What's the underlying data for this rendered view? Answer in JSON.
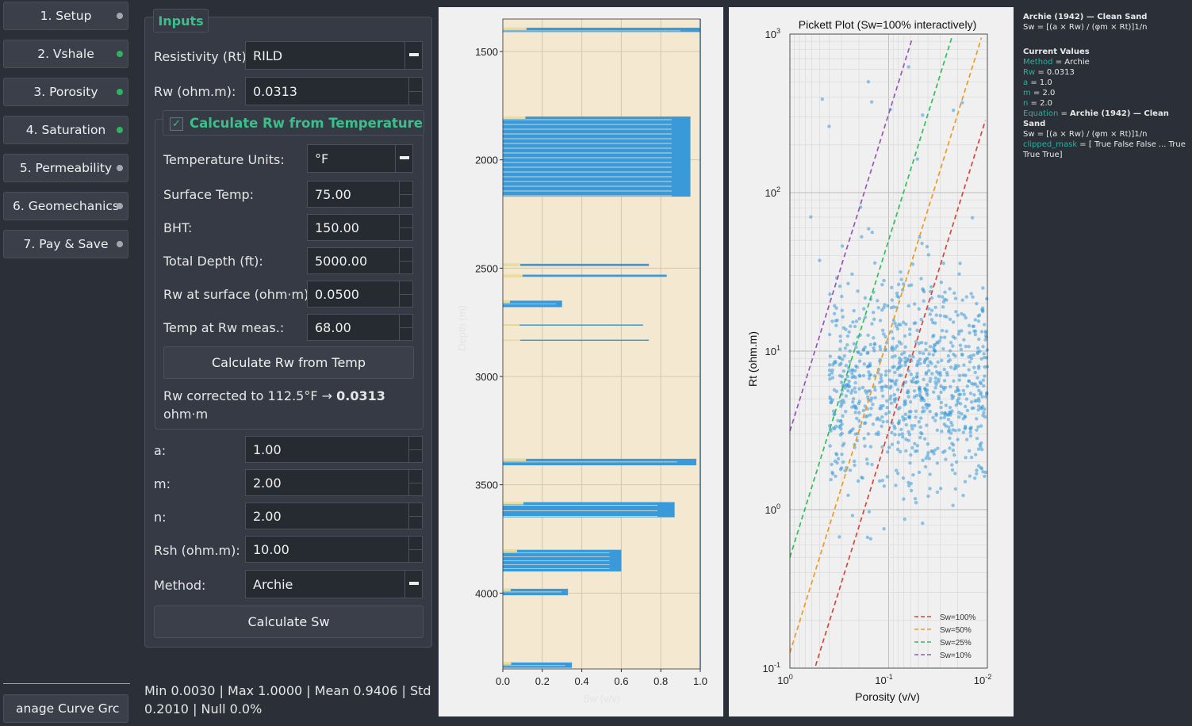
{
  "nav": {
    "items": [
      {
        "label": "1. Setup",
        "status": "grey"
      },
      {
        "label": "2. Vshale",
        "status": "green"
      },
      {
        "label": "3. Porosity",
        "status": "green"
      },
      {
        "label": "4. Saturation",
        "status": "green"
      },
      {
        "label": "5. Permeability",
        "status": "grey"
      },
      {
        "label": "6. Geomechanics",
        "status": "grey"
      },
      {
        "label": "7. Pay & Save",
        "status": "grey"
      }
    ],
    "manage_label": "anage Curve Grc"
  },
  "inputs": {
    "tab_label": "Inputs",
    "resistivity_label": "Resistivity (Rt):",
    "resistivity_value": "RILD",
    "rw_label": "Rw (ohm.m):",
    "rw_value": "0.0313",
    "calc_rw_checkbox_label": "Calculate Rw from Temperature (Arps)",
    "temp_units_label": "Temperature Units:",
    "temp_units_value": "°F",
    "surface_temp_label": "Surface Temp:",
    "surface_temp_value": "75.00",
    "bht_label": "BHT:",
    "bht_value": "150.00",
    "total_depth_label": "Total Depth (ft):",
    "total_depth_value": "5000.00",
    "rw_surface_label": "Rw at surface (ohm·m):",
    "rw_surface_value": "0.0500",
    "temp_rw_meas_label": "Temp at Rw meas.:",
    "temp_rw_meas_value": "68.00",
    "calc_rw_button": "Calculate Rw from Temp",
    "rw_corrected_prefix": "Rw corrected to 112.5°F → ",
    "rw_corrected_value": "0.0313",
    "rw_corrected_unit": "ohm·m",
    "a_label": "a:",
    "a_value": "1.00",
    "m_label": "m:",
    "m_value": "2.00",
    "n_label": "n:",
    "n_value": "2.00",
    "rsh_label": "Rsh (ohm.m):",
    "rsh_value": "10.00",
    "method_label": "Method:",
    "method_value": "Archie",
    "calc_sw_button": "Calculate Sw"
  },
  "stats": {
    "line1": "Min 0.0030  |  Max 1.0000  |  Mean 0.9406  |  Std",
    "line2": "0.2010  |  Null 0.0%"
  },
  "sidebar": {
    "title": "Archie (1942) — Clean Sand",
    "equation": "Sw = [(a × Rw) / (φm × Rt)]1/n",
    "current_values_heading": "Current Values",
    "rows": [
      {
        "key": "Method",
        "value": "Archie"
      },
      {
        "key": "Rw",
        "value": "0.0313"
      },
      {
        "key": "a",
        "value": "1.0"
      },
      {
        "key": "m",
        "value": "2.0"
      },
      {
        "key": "n",
        "value": "2.0"
      }
    ],
    "equation_key": "Equation",
    "equation_value": "Archie (1942) — Clean Sand",
    "clipped_key": "clipped_mask",
    "clipped_value": "[ True False False ... True True True]"
  },
  "chart_data": [
    {
      "type": "area",
      "title": "",
      "xlabel": "Sw (v/v)",
      "ylabel": "Depth (m)",
      "xlim": [
        0.0,
        1.0
      ],
      "ylim": [
        4350,
        1350
      ],
      "x_ticks": [
        "0.0",
        "0.2",
        "0.4",
        "0.6",
        "0.8",
        "1.0"
      ],
      "y_ticks": [
        "1500",
        "2000",
        "2500",
        "3000",
        "3500",
        "4000"
      ],
      "grid": true,
      "colors": {
        "sw": "#3a9ad9",
        "hydrocarbon": "#f5e8d0",
        "flag": "#f2dc8a"
      },
      "intervals": [
        {
          "top": 1390,
          "base": 1410,
          "sw": 1.0
        },
        {
          "top": 1800,
          "base": 2170,
          "sw": 0.95
        },
        {
          "top": 2480,
          "base": 2490,
          "sw": 0.74
        },
        {
          "top": 2530,
          "base": 2540,
          "sw": 0.83
        },
        {
          "top": 2650,
          "base": 2680,
          "sw": 0.3
        },
        {
          "top": 2760,
          "base": 2765,
          "sw": 0.71
        },
        {
          "top": 2830,
          "base": 2835,
          "sw": 0.74
        },
        {
          "top": 3380,
          "base": 3410,
          "sw": 0.98
        },
        {
          "top": 3580,
          "base": 3650,
          "sw": 0.87
        },
        {
          "top": 3800,
          "base": 3900,
          "sw": 0.6
        },
        {
          "top": 3980,
          "base": 4010,
          "sw": 0.33
        },
        {
          "top": 4320,
          "base": 4345,
          "sw": 0.35
        }
      ]
    },
    {
      "type": "scatter",
      "title": "Pickett Plot (Sw=100% interactively)",
      "xlabel": "Porosity (v/v)",
      "ylabel": "Rt (ohm.m)",
      "x_scale": "log",
      "y_scale": "log",
      "xlim": [
        1.0,
        0.01
      ],
      "ylim": [
        0.1,
        1000
      ],
      "x_ticks": [
        "10^0",
        "10^-1",
        "10^-2"
      ],
      "y_ticks": [
        "10^-1",
        "10^0",
        "10^1",
        "10^2",
        "10^3"
      ],
      "grid": true,
      "point_color": "#3a9ad9",
      "points_note": "approx. 900 points, porosity 0.01-1.0, Rt 0.7-700",
      "series": [
        {
          "name": "Sw=100%",
          "color": "#d9453b"
        },
        {
          "name": "Sw=50%",
          "color": "#ef9a22"
        },
        {
          "name": "Sw=25%",
          "color": "#2fbf5b"
        },
        {
          "name": "Sw=10%",
          "color": "#9a55b5"
        }
      ],
      "legend": "bottom-right"
    }
  ]
}
